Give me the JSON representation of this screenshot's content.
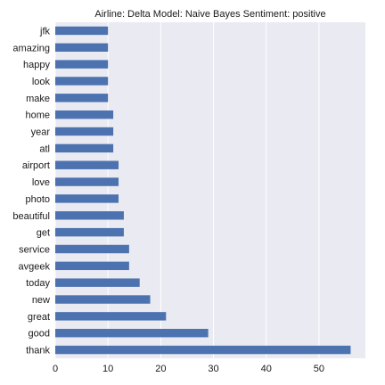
{
  "colors": {
    "plot_background": "#eaeaf2",
    "grid": "#ffffff",
    "bar": "#4c72b0",
    "text": "#1a1a1a"
  },
  "chart_data": {
    "type": "bar",
    "orientation": "horizontal",
    "title": "Airline: Delta Model: Naive Bayes Sentiment: positive",
    "xlabel": "",
    "ylabel": "",
    "categories": [
      "jfk",
      "amazing",
      "happy",
      "look",
      "make",
      "home",
      "year",
      "atl",
      "airport",
      "love",
      "photo",
      "beautiful",
      "get",
      "service",
      "avgeek",
      "today",
      "new",
      "great",
      "good",
      "thank"
    ],
    "values": [
      10,
      10,
      10,
      10,
      10,
      11,
      11,
      11,
      12,
      12,
      12,
      13,
      13,
      14,
      14,
      16,
      18,
      21,
      29,
      56
    ],
    "xlim": [
      0,
      58.8
    ],
    "xticks": [
      0,
      10,
      20,
      30,
      40,
      50
    ],
    "grid": true,
    "legend": "none"
  }
}
